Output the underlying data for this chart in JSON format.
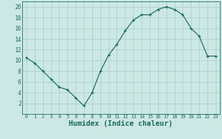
{
  "x": [
    0,
    1,
    2,
    3,
    4,
    5,
    6,
    7,
    8,
    9,
    10,
    11,
    12,
    13,
    14,
    15,
    16,
    17,
    18,
    19,
    20,
    21,
    22,
    23
  ],
  "y": [
    10.5,
    9.5,
    8.0,
    6.5,
    5.0,
    4.5,
    3.0,
    1.5,
    4.0,
    8.0,
    11.0,
    13.0,
    15.5,
    17.5,
    18.5,
    18.5,
    19.5,
    20.0,
    19.5,
    18.5,
    16.0,
    14.5,
    10.8,
    10.8
  ],
  "line_color": "#1a6b5a",
  "marker": "+",
  "marker_size": 3,
  "marker_color": "#1a6b5a",
  "bg_color": "#cce8e4",
  "grid_color": "#aacfcb",
  "xlabel": "Humidex (Indice chaleur)",
  "xlabel_fontsize": 7.5,
  "xlabel_color": "#1a6b5a",
  "tick_color": "#1a6b5a",
  "xlim": [
    -0.5,
    23.5
  ],
  "ylim": [
    0,
    21
  ],
  "yticks": [
    2,
    4,
    6,
    8,
    10,
    12,
    14,
    16,
    18,
    20
  ],
  "xticks": [
    0,
    1,
    2,
    3,
    4,
    5,
    6,
    7,
    8,
    9,
    10,
    11,
    12,
    13,
    14,
    15,
    16,
    17,
    18,
    19,
    20,
    21,
    22,
    23
  ]
}
